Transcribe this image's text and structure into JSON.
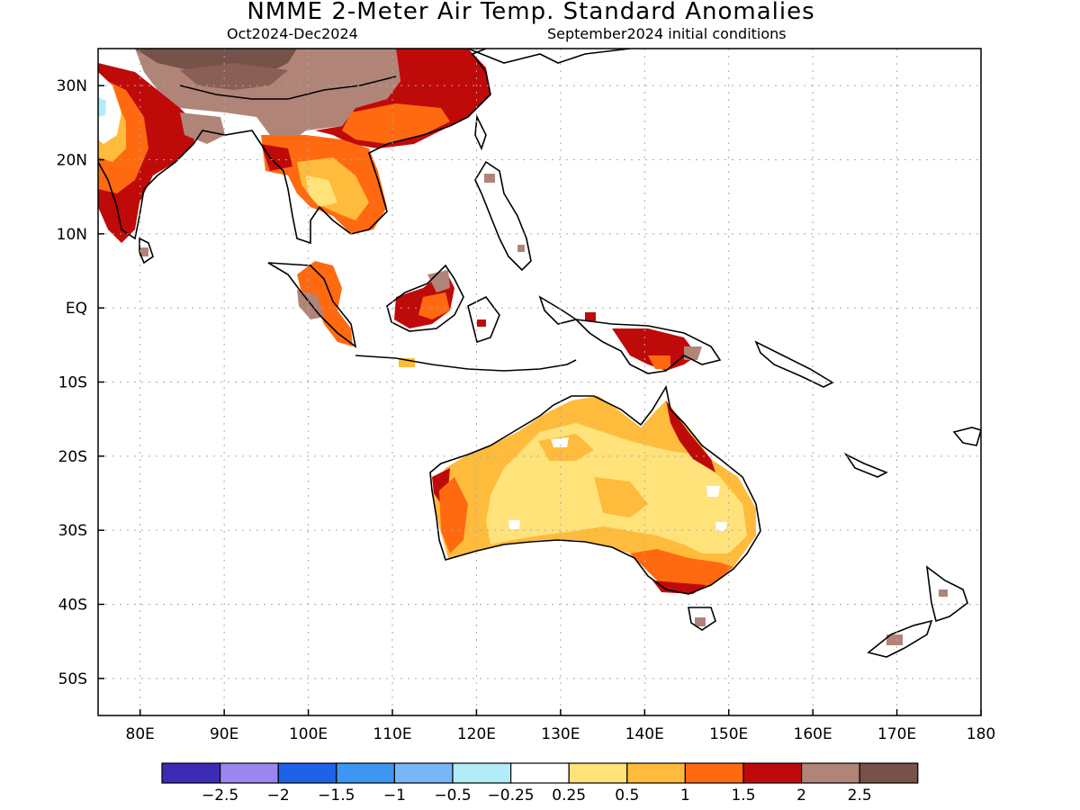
{
  "header": {
    "title": "NMME 2-Meter Air Temp. Standard Anomalies",
    "period": "Oct2024-Dec2024",
    "init": "September2024 initial conditions"
  },
  "axes": {
    "lon_ticks": [
      {
        "value": 80,
        "label": "80E"
      },
      {
        "value": 90,
        "label": "90E"
      },
      {
        "value": 100,
        "label": "100E"
      },
      {
        "value": 110,
        "label": "110E"
      },
      {
        "value": 120,
        "label": "120E"
      },
      {
        "value": 130,
        "label": "130E"
      },
      {
        "value": 140,
        "label": "140E"
      },
      {
        "value": 150,
        "label": "150E"
      },
      {
        "value": 160,
        "label": "160E"
      },
      {
        "value": 170,
        "label": "170E"
      },
      {
        "value": 180,
        "label": "180"
      }
    ],
    "lat_ticks": [
      {
        "value": 30,
        "label": "30N"
      },
      {
        "value": 20,
        "label": "20N"
      },
      {
        "value": 10,
        "label": "10N"
      },
      {
        "value": 0,
        "label": "EQ"
      },
      {
        "value": -10,
        "label": "10S"
      },
      {
        "value": -20,
        "label": "20S"
      },
      {
        "value": -30,
        "label": "30S"
      },
      {
        "value": -40,
        "label": "40S"
      },
      {
        "value": -50,
        "label": "50S"
      }
    ],
    "lon_range": [
      75,
      180
    ],
    "lat_range": [
      -55,
      35
    ],
    "grid": true
  },
  "legend": {
    "colors": [
      "#3b2bb5",
      "#9a86f0",
      "#1f62e8",
      "#3c96f2",
      "#78b6f7",
      "#b2ecf9",
      "#ffffff",
      "#ffe27a",
      "#ffbb3b",
      "#ff6a10",
      "#bf0a0a",
      "#b18478",
      "#76524a"
    ],
    "labels": [
      "-2.5",
      "-2",
      "-1.5",
      "-1",
      "-0.5",
      "-0.25",
      "0.25",
      "0.5",
      "1",
      "1.5",
      "2",
      "2.5"
    ]
  },
  "colors": {
    "land_outline": "#000000",
    "grid": "#aaaaaa"
  }
}
